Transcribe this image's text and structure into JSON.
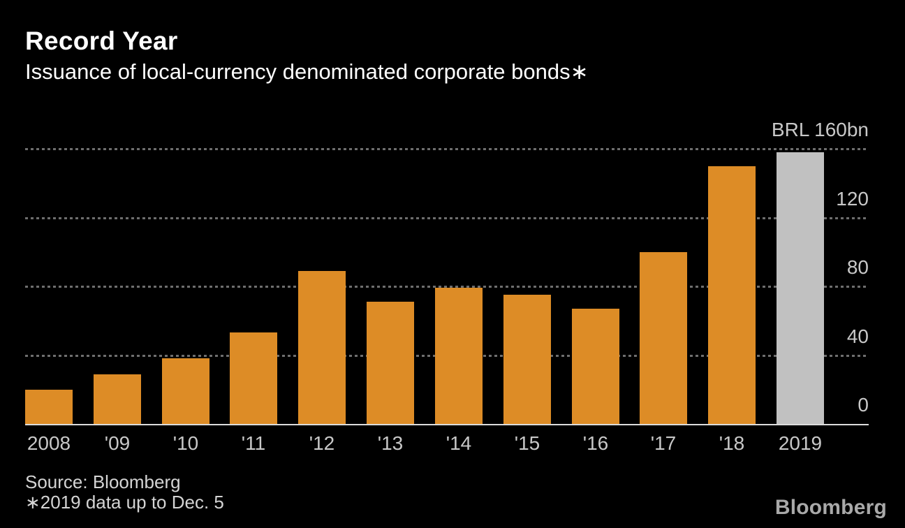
{
  "header": {
    "title": "Record Year",
    "subtitle": "Issuance of local-currency denominated corporate bonds∗"
  },
  "chart_data": {
    "type": "bar",
    "title": "Record Year",
    "subtitle": "Issuance of local-currency denominated corporate bonds∗",
    "unit": "BRL bn",
    "categories": [
      "2008",
      "'09",
      "'10",
      "'11",
      "'12",
      "'13",
      "'14",
      "'15",
      "'16",
      "'17",
      "'18",
      "2019"
    ],
    "values": [
      20,
      29,
      38,
      53,
      89,
      71,
      79,
      75,
      67,
      100,
      150,
      158
    ],
    "highlight_index": 11,
    "highlight_note": "2019 bar shown in gray (partial-year data)",
    "ylim": [
      0,
      160
    ],
    "yticks": [
      {
        "value": 0,
        "label": "0"
      },
      {
        "value": 40,
        "label": "40"
      },
      {
        "value": 80,
        "label": "80"
      },
      {
        "value": 120,
        "label": "120"
      },
      {
        "value": 160,
        "label": "BRL 160bn"
      }
    ],
    "grid": "horizontal-dashed",
    "legend": "none",
    "bar_color": "#dd8c26",
    "highlight_bar_color": "#c1c1c1"
  },
  "footer": {
    "source": "Source: Bloomberg",
    "footnote": "∗2019 data up to Dec. 5",
    "logo": "Bloomberg"
  },
  "colors": {
    "background": "#000000",
    "title_text": "#ffffff",
    "tick_label": "#c8c8c8",
    "gridline": "#6e6e6e",
    "axis_line": "#dcdcdc",
    "footer_text": "#d4d4d4",
    "logo_text": "#a9a9a9"
  }
}
